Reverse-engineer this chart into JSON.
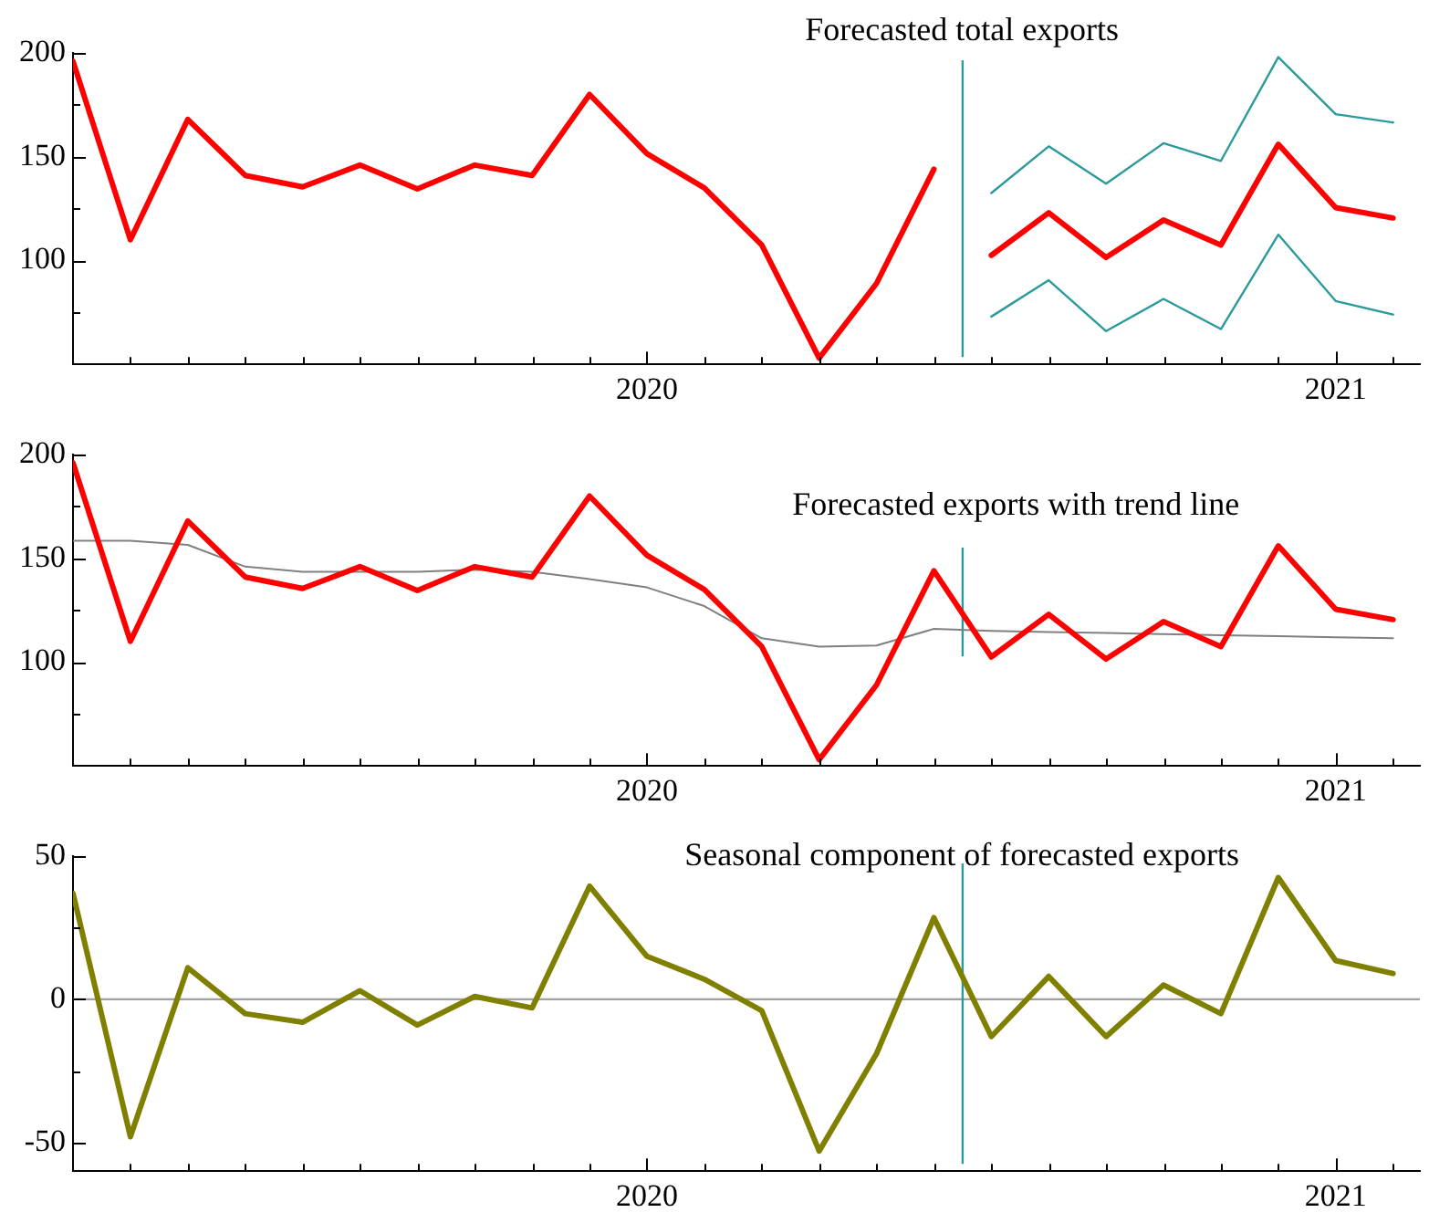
{
  "chart_data": [
    {
      "type": "line",
      "title": "Forecasted total exports",
      "grid": false,
      "legend": false,
      "marker": "none",
      "xlim": [
        "2019-03-01",
        "2021-02-15"
      ],
      "xticks": [
        {
          "value": "2019-04",
          "label": null
        },
        {
          "value": "2019-05",
          "label": null
        },
        {
          "value": "2019-06",
          "label": null
        },
        {
          "value": "2019-07",
          "label": null
        },
        {
          "value": "2019-08",
          "label": null
        },
        {
          "value": "2019-09",
          "label": null
        },
        {
          "value": "2019-10",
          "label": null
        },
        {
          "value": "2019-11",
          "label": null
        },
        {
          "value": "2019-12",
          "label": null
        },
        {
          "value": "2020-01",
          "label": "2020"
        },
        {
          "value": "2020-02",
          "label": null
        },
        {
          "value": "2020-03",
          "label": null
        },
        {
          "value": "2020-04",
          "label": null
        },
        {
          "value": "2020-05",
          "label": null
        },
        {
          "value": "2020-06",
          "label": null
        },
        {
          "value": "2020-07",
          "label": null
        },
        {
          "value": "2020-08",
          "label": null
        },
        {
          "value": "2020-09",
          "label": null
        },
        {
          "value": "2020-10",
          "label": null
        },
        {
          "value": "2020-11",
          "label": null
        },
        {
          "value": "2020-12",
          "label": null
        },
        {
          "value": "2021-01",
          "label": "2021"
        },
        {
          "value": "2021-02",
          "label": null
        }
      ],
      "ylim": [
        50,
        200
      ],
      "yticks": [
        {
          "value": 75,
          "label": null
        },
        100,
        {
          "value": 125,
          "label": null
        },
        150,
        {
          "value": 175,
          "label": null
        },
        200
      ],
      "ref_lines": [
        {
          "axis": "x",
          "value": "2020-06-16",
          "label": null,
          "color": "#2a9a9a"
        }
      ],
      "series": [
        {
          "color": "#ff0000",
          "x": [
            "2019-03",
            "2019-04",
            "2019-05",
            "2019-06",
            "2019-07",
            "2019-08",
            "2019-09",
            "2019-10",
            "2019-11",
            "2019-12",
            "2020-01",
            "2020-02",
            "2020-03",
            "2020-04",
            "2020-05",
            "2020-06"
          ],
          "values": [
            196,
            110,
            168,
            141,
            135.5,
            146,
            134.5,
            146,
            141,
            180,
            151.5,
            135,
            107.5,
            53,
            89,
            144
          ]
        },
        {
          "color": "#ff0000",
          "x": [
            "2020-07",
            "2020-08",
            "2020-09",
            "2020-10",
            "2020-11",
            "2020-12",
            "2021-01",
            "2021-02"
          ],
          "values": [
            102.5,
            123,
            101.5,
            119.5,
            107.5,
            156,
            125.5,
            120.5
          ]
        },
        {
          "color": "#2a9a9a",
          "x": [
            "2020-07",
            "2020-08",
            "2020-09",
            "2020-10",
            "2020-11",
            "2020-12",
            "2021-01",
            "2021-02"
          ],
          "values": [
            132.5,
            155,
            137,
            156.5,
            148,
            198,
            170.5,
            166.5
          ]
        },
        {
          "color": "#2a9a9a",
          "x": [
            "2020-07",
            "2020-08",
            "2020-09",
            "2020-10",
            "2020-11",
            "2020-12",
            "2021-01",
            "2021-02"
          ],
          "values": [
            73,
            90.5,
            66,
            81.5,
            67,
            112.5,
            80.5,
            74
          ]
        }
      ]
    },
    {
      "type": "line",
      "title": "Forecasted exports with trend line",
      "grid": false,
      "legend": false,
      "marker": "none",
      "xlim": [
        "2019-03-01",
        "2021-02-15"
      ],
      "xticks": [
        {
          "value": "2019-04",
          "label": null
        },
        {
          "value": "2019-05",
          "label": null
        },
        {
          "value": "2019-06",
          "label": null
        },
        {
          "value": "2019-07",
          "label": null
        },
        {
          "value": "2019-08",
          "label": null
        },
        {
          "value": "2019-09",
          "label": null
        },
        {
          "value": "2019-10",
          "label": null
        },
        {
          "value": "2019-11",
          "label": null
        },
        {
          "value": "2019-12",
          "label": null
        },
        {
          "value": "2020-01",
          "label": "2020"
        },
        {
          "value": "2020-02",
          "label": null
        },
        {
          "value": "2020-03",
          "label": null
        },
        {
          "value": "2020-04",
          "label": null
        },
        {
          "value": "2020-05",
          "label": null
        },
        {
          "value": "2020-06",
          "label": null
        },
        {
          "value": "2020-07",
          "label": null
        },
        {
          "value": "2020-08",
          "label": null
        },
        {
          "value": "2020-09",
          "label": null
        },
        {
          "value": "2020-10",
          "label": null
        },
        {
          "value": "2020-11",
          "label": null
        },
        {
          "value": "2020-12",
          "label": null
        },
        {
          "value": "2021-01",
          "label": "2021"
        },
        {
          "value": "2021-02",
          "label": null
        }
      ],
      "ylim": [
        50,
        200
      ],
      "yticks": [
        {
          "value": 75,
          "label": null
        },
        100,
        {
          "value": 125,
          "label": null
        },
        150,
        {
          "value": 175,
          "label": null
        },
        200
      ],
      "ref_lines": [
        {
          "axis": "x",
          "value": "2020-06-16",
          "label": null,
          "color": "#2a9a9a"
        }
      ],
      "series": [
        {
          "color": "#ff0000",
          "x": [
            "2019-03",
            "2019-04",
            "2019-05",
            "2019-06",
            "2019-07",
            "2019-08",
            "2019-09",
            "2019-10",
            "2019-11",
            "2019-12",
            "2020-01",
            "2020-02",
            "2020-03",
            "2020-04",
            "2020-05",
            "2020-06",
            "2020-07",
            "2020-08",
            "2020-09",
            "2020-10",
            "2020-11",
            "2020-12",
            "2021-01",
            "2021-02"
          ],
          "values": [
            196,
            110,
            168,
            141,
            135.5,
            146,
            134.5,
            146,
            141,
            180,
            151.5,
            135,
            107.5,
            53,
            89,
            144,
            102.5,
            123,
            101.5,
            119.5,
            107.5,
            156,
            125.5,
            120.5
          ]
        },
        {
          "color": "#808080",
          "x": [
            "2019-03",
            "2019-04",
            "2019-05",
            "2019-06",
            "2019-07",
            "2019-08",
            "2019-09",
            "2019-10",
            "2019-11",
            "2019-12",
            "2020-01",
            "2020-02",
            "2020-03",
            "2020-04",
            "2020-05",
            "2020-06",
            "2020-07",
            "2020-08",
            "2020-09",
            "2020-10",
            "2020-11",
            "2020-12",
            "2021-01",
            "2021-02"
          ],
          "values": [
            158.5,
            158.5,
            156.5,
            146,
            143.5,
            143.5,
            143.5,
            144.5,
            143.5,
            140,
            136,
            127,
            111.5,
            107.5,
            108,
            116,
            115,
            114.5,
            114,
            113.5,
            113,
            112.5,
            112,
            111.5
          ]
        }
      ]
    },
    {
      "type": "line",
      "title": "Seasonal component of forecasted exports",
      "grid": false,
      "legend": false,
      "marker": "none",
      "xlim": [
        "2019-03-01",
        "2021-02-15"
      ],
      "xticks": [
        {
          "value": "2019-04",
          "label": null
        },
        {
          "value": "2019-05",
          "label": null
        },
        {
          "value": "2019-06",
          "label": null
        },
        {
          "value": "2019-07",
          "label": null
        },
        {
          "value": "2019-08",
          "label": null
        },
        {
          "value": "2019-09",
          "label": null
        },
        {
          "value": "2019-10",
          "label": null
        },
        {
          "value": "2019-11",
          "label": null
        },
        {
          "value": "2019-12",
          "label": null
        },
        {
          "value": "2020-01",
          "label": "2020"
        },
        {
          "value": "2020-02",
          "label": null
        },
        {
          "value": "2020-03",
          "label": null
        },
        {
          "value": "2020-04",
          "label": null
        },
        {
          "value": "2020-05",
          "label": null
        },
        {
          "value": "2020-06",
          "label": null
        },
        {
          "value": "2020-07",
          "label": null
        },
        {
          "value": "2020-08",
          "label": null
        },
        {
          "value": "2020-09",
          "label": null
        },
        {
          "value": "2020-10",
          "label": null
        },
        {
          "value": "2020-11",
          "label": null
        },
        {
          "value": "2020-12",
          "label": null
        },
        {
          "value": "2021-01",
          "label": "2021"
        },
        {
          "value": "2021-02",
          "label": null
        }
      ],
      "ylim": [
        -60,
        50
      ],
      "yticks": [
        -50,
        {
          "value": -25,
          "label": null
        },
        0,
        {
          "value": 25,
          "label": null
        },
        50
      ],
      "ref_lines": [
        {
          "axis": "y",
          "value": 0,
          "label": null,
          "color": "#a0a0a0"
        },
        {
          "axis": "x",
          "value": "2020-06-16",
          "label": null,
          "color": "#2a9a9a"
        }
      ],
      "series": [
        {
          "color": "#808000",
          "x": [
            "2019-03",
            "2019-04",
            "2019-05",
            "2019-06",
            "2019-07",
            "2019-08",
            "2019-09",
            "2019-10",
            "2019-11",
            "2019-12",
            "2020-01",
            "2020-02",
            "2020-03",
            "2020-04",
            "2020-05",
            "2020-06",
            "2020-07",
            "2020-08",
            "2020-09",
            "2020-10",
            "2020-11",
            "2020-12",
            "2021-01",
            "2021-02"
          ],
          "values": [
            37,
            -48,
            11,
            -5,
            -8,
            3,
            -9,
            1,
            -3,
            39.5,
            15,
            7,
            -4,
            -53,
            -19,
            28.5,
            -13,
            8,
            -13,
            5,
            -5,
            42.5,
            13.5,
            9
          ]
        }
      ]
    }
  ]
}
